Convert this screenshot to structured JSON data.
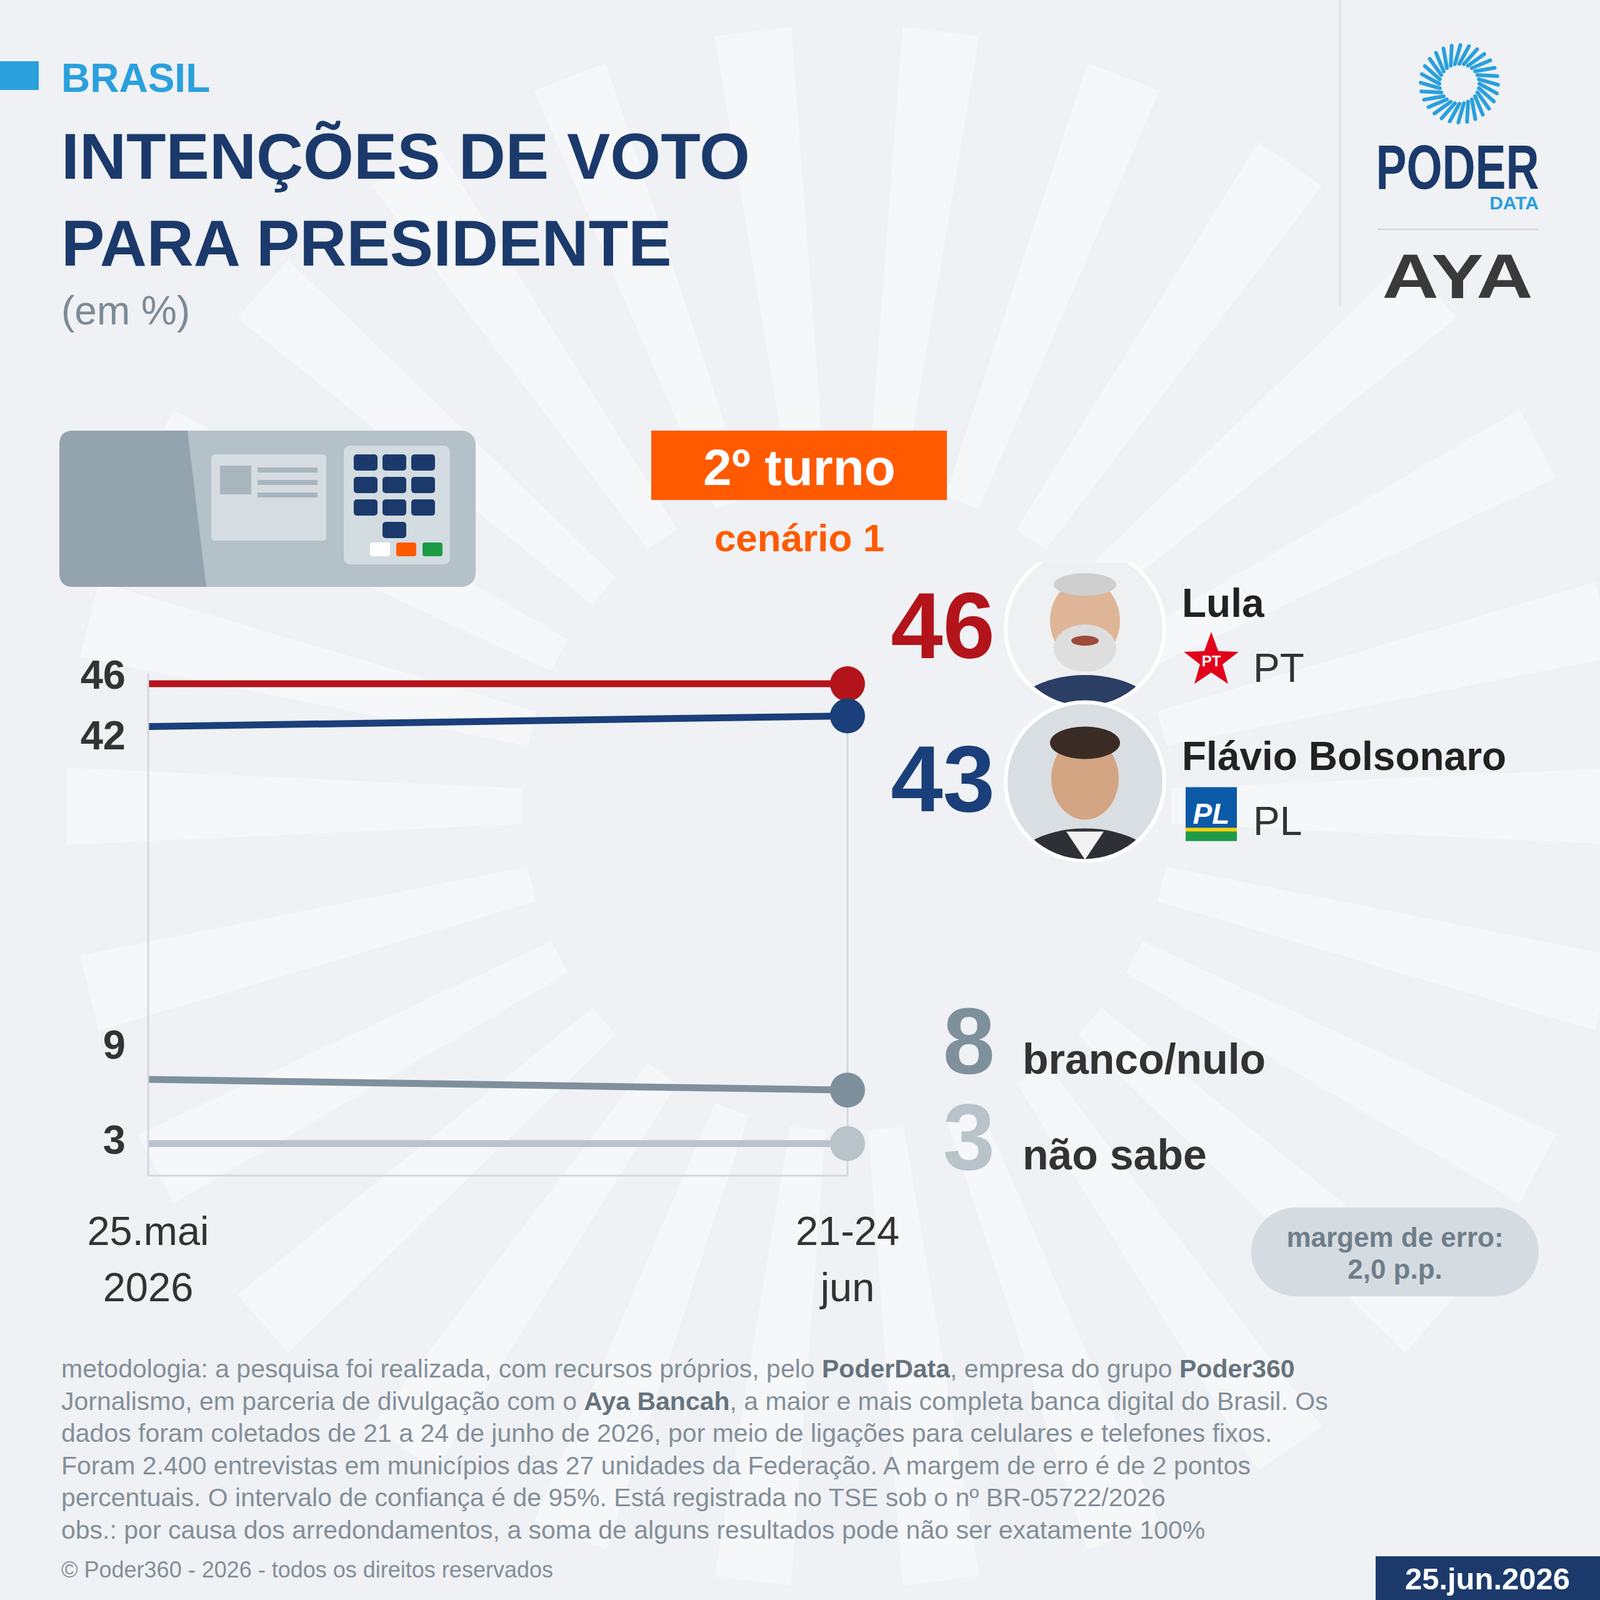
{
  "chart_data": {
    "type": "line",
    "section": "BRASIL",
    "title": "INTENÇÕES DE VOTO PARA PRESIDENTE",
    "subtitle": "(em %)",
    "badge": "2º turno",
    "scenario": "cenário 1",
    "categories": [
      "25.mai 2026",
      "21-24 jun"
    ],
    "series": [
      {
        "name": "Lula",
        "party": "PT",
        "color": "#b3141b",
        "values": [
          46,
          46
        ]
      },
      {
        "name": "Flávio Bolsonaro",
        "party": "PL",
        "color": "#1a3f7a",
        "values": [
          42,
          43
        ]
      },
      {
        "name": "branco/nulo",
        "color": "#7e909c",
        "values": [
          9,
          8
        ]
      },
      {
        "name": "não sabe",
        "color": "#b8c3ca",
        "values": [
          3,
          3
        ]
      }
    ],
    "ylim": [
      0,
      47
    ],
    "tick_labels": "x",
    "grid": false,
    "data_labels": true,
    "margin_of_error": [
      "margem de erro:",
      "2,0 p.p."
    ],
    "methodology": [
      "metodologia: a pesquisa foi realizada, com recursos próprios, pelo PoderData, empresa do grupo Poder360",
      "Jornalismo, em parceria de divulgação com o Aya Bancah, a maior e mais completa banca digital do Brasil. Os",
      "dados foram coletados de 21 a 24 de junho de 2026, por meio de ligações para celulares e telefones fixos.",
      "Foram 2.400 entrevistas em municípios das 27 unidades da Federação. A margem de erro é de 2 pontos",
      "percentuais. O intervalo de confiança é de 95%. Está registrada no TSE sob o nº BR-05722/2026",
      "obs.: por causa dos arredondamentos, a soma de alguns resultados pode não ser exatamente 100%"
    ],
    "methodology_bold": [
      "PoderData",
      "Poder360",
      "Aya Bancah"
    ],
    "copyright": "© Poder360 - 2026 - todos os direitos reservados",
    "date": "25.jun.2026",
    "logos": [
      "PODER",
      "DATA",
      "AYA"
    ]
  }
}
